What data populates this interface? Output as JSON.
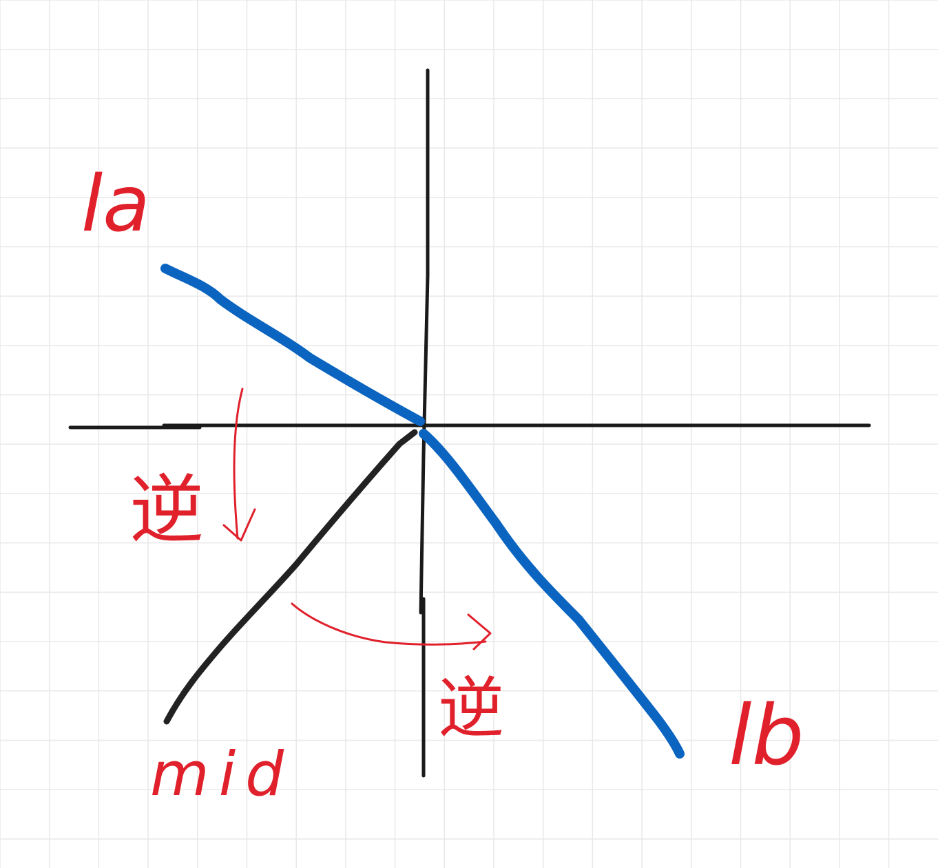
{
  "colors": {
    "background": "#ffffff",
    "grid": "#e8e8e8",
    "axis": "#1a1a1a",
    "mid_line": "#222222",
    "blue_lines": "#0a64c0",
    "annotation": "#e0202a"
  },
  "labels": {
    "la": "la",
    "lb": "lb",
    "mid": "mid",
    "rotation_left": "逆",
    "rotation_bottom": "逆"
  }
}
